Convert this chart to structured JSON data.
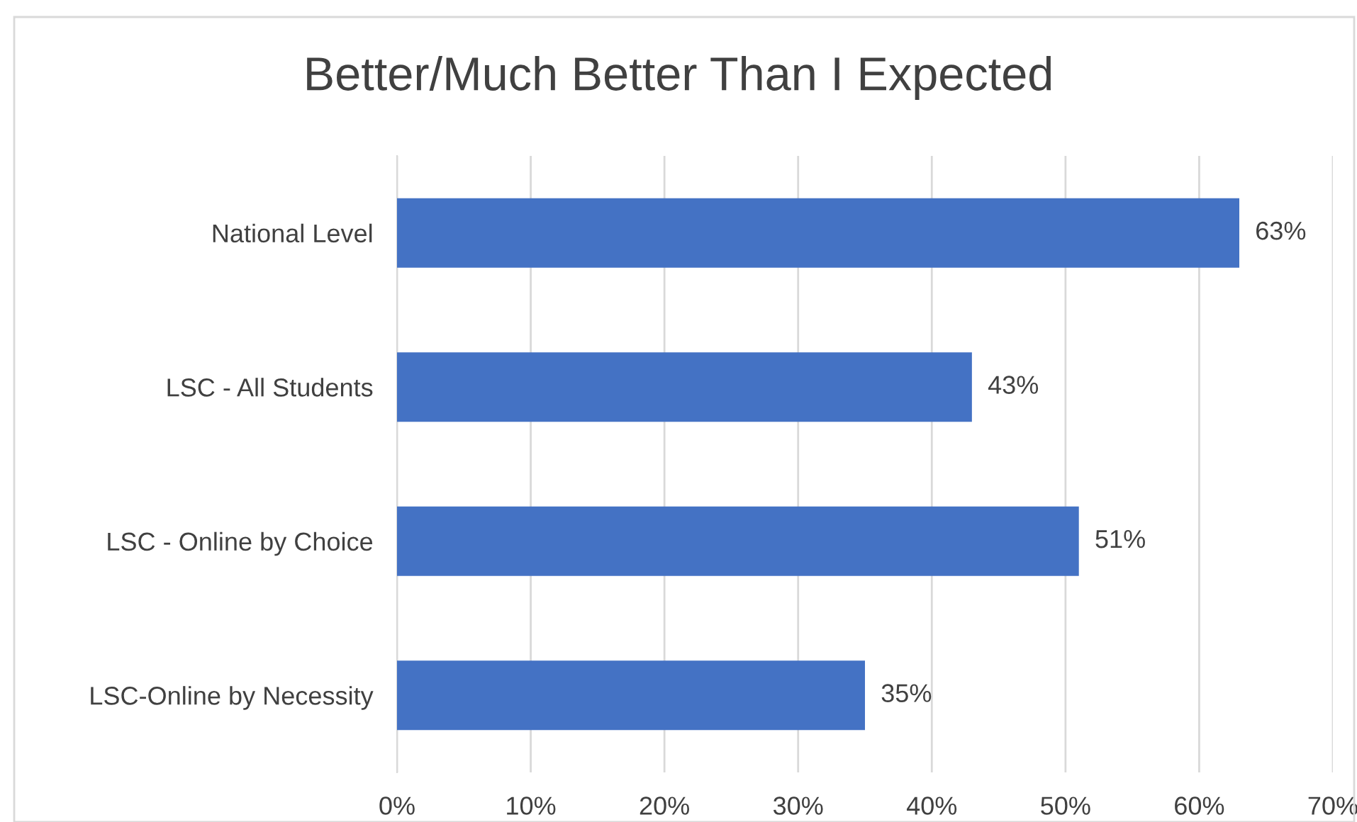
{
  "chart_data": {
    "type": "bar",
    "orientation": "horizontal",
    "title": "Better/Much Better Than I Expected",
    "categories": [
      "National Level",
      "LSC - All Students",
      "LSC - Online by Choice",
      "LSC-Online by Necessity"
    ],
    "values": [
      63,
      43,
      51,
      35
    ],
    "color": "#4472c4",
    "value_labels": [
      "63%",
      "43%",
      "51%",
      "35%"
    ],
    "xlim": [
      0,
      70
    ],
    "xticks": [
      {
        "value": 0,
        "label": "0%"
      },
      {
        "value": 10,
        "label": "10%"
      },
      {
        "value": 20,
        "label": "20%"
      },
      {
        "value": 30,
        "label": "30%"
      },
      {
        "value": 40,
        "label": "40%"
      },
      {
        "value": 50,
        "label": "50%"
      },
      {
        "value": 60,
        "label": "60%"
      },
      {
        "value": 70,
        "label": "70%"
      }
    ],
    "grid": "x",
    "legend": false
  }
}
